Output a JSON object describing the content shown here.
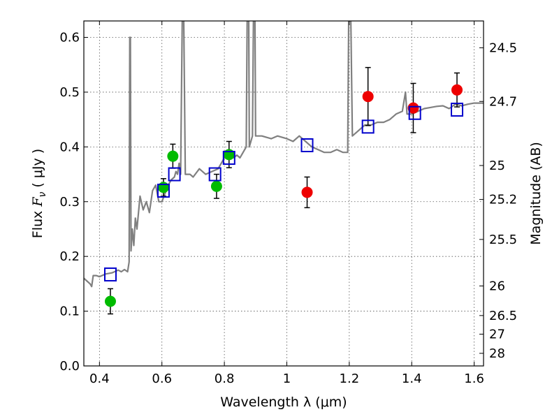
{
  "chart_data": {
    "type": "scatter",
    "title": "",
    "xlabel": "Wavelength  λ (μm)",
    "ylabel": "Flux  F_ν  ( μJy )",
    "ylabel_parts": {
      "prefix": "Flux  ",
      "symbol": "F",
      "subscript": "ν",
      "suffix": "  ( μJy )"
    },
    "y2label": "Magnitude (AB)",
    "xlim": [
      0.35,
      1.63
    ],
    "ylim": [
      0.0,
      0.63
    ],
    "grid": true,
    "x_ticks": [
      0.4,
      0.6,
      0.8,
      1.0,
      1.2,
      1.4,
      1.6
    ],
    "x_tick_labels": [
      "0.4",
      "0.6",
      "0.8",
      "1",
      "1.2",
      "1.4",
      "1.6"
    ],
    "y_ticks": [
      0.0,
      0.1,
      0.2,
      0.3,
      0.4,
      0.5,
      0.6
    ],
    "y_tick_labels": [
      "0.0",
      "0.1",
      "0.2",
      "0.3",
      "0.4",
      "0.5",
      "0.6"
    ],
    "mag_ticks": [
      {
        "label": "24.5",
        "flux": 0.581
      },
      {
        "label": "24.7",
        "flux": 0.483
      },
      {
        "label": "25",
        "flux": 0.366
      },
      {
        "label": "25.2",
        "flux": 0.304
      },
      {
        "label": "25.5",
        "flux": 0.231
      },
      {
        "label": "26",
        "flux": 0.146
      },
      {
        "label": "26.5",
        "flux": 0.092
      },
      {
        "label": "27",
        "flux": 0.058
      },
      {
        "label": "28",
        "flux": 0.023
      }
    ],
    "colors": {
      "model": "#808080",
      "green": "#00bb00",
      "red": "#ee0000",
      "box": "#0000cc",
      "errorbar": "#000000"
    },
    "model_sed": [
      [
        0.35,
        0.16
      ],
      [
        0.36,
        0.155
      ],
      [
        0.37,
        0.15
      ],
      [
        0.375,
        0.145
      ],
      [
        0.38,
        0.165
      ],
      [
        0.39,
        0.165
      ],
      [
        0.4,
        0.163
      ],
      [
        0.42,
        0.168
      ],
      [
        0.44,
        0.17
      ],
      [
        0.46,
        0.175
      ],
      [
        0.47,
        0.172
      ],
      [
        0.48,
        0.176
      ],
      [
        0.49,
        0.172
      ],
      [
        0.495,
        0.19
      ],
      [
        0.497,
        0.6
      ],
      [
        0.499,
        0.6
      ],
      [
        0.501,
        0.21
      ],
      [
        0.505,
        0.25
      ],
      [
        0.51,
        0.22
      ],
      [
        0.515,
        0.27
      ],
      [
        0.52,
        0.25
      ],
      [
        0.53,
        0.31
      ],
      [
        0.54,
        0.285
      ],
      [
        0.55,
        0.3
      ],
      [
        0.56,
        0.28
      ],
      [
        0.57,
        0.32
      ],
      [
        0.58,
        0.33
      ],
      [
        0.59,
        0.3
      ],
      [
        0.6,
        0.3
      ],
      [
        0.62,
        0.33
      ],
      [
        0.63,
        0.34
      ],
      [
        0.64,
        0.345
      ],
      [
        0.645,
        0.355
      ],
      [
        0.65,
        0.35
      ],
      [
        0.655,
        0.37
      ],
      [
        0.66,
        0.35
      ],
      [
        0.665,
        0.63
      ],
      [
        0.67,
        0.63
      ],
      [
        0.675,
        0.35
      ],
      [
        0.69,
        0.35
      ],
      [
        0.7,
        0.345
      ],
      [
        0.72,
        0.36
      ],
      [
        0.74,
        0.35
      ],
      [
        0.76,
        0.355
      ],
      [
        0.78,
        0.36
      ],
      [
        0.8,
        0.38
      ],
      [
        0.82,
        0.39
      ],
      [
        0.83,
        0.38
      ],
      [
        0.84,
        0.385
      ],
      [
        0.85,
        0.38
      ],
      [
        0.86,
        0.39
      ],
      [
        0.87,
        0.4
      ],
      [
        0.873,
        0.63
      ],
      [
        0.878,
        0.63
      ],
      [
        0.88,
        0.4
      ],
      [
        0.89,
        0.42
      ],
      [
        0.893,
        0.63
      ],
      [
        0.898,
        0.63
      ],
      [
        0.9,
        0.42
      ],
      [
        0.92,
        0.42
      ],
      [
        0.95,
        0.415
      ],
      [
        0.97,
        0.42
      ],
      [
        1.0,
        0.415
      ],
      [
        1.02,
        0.41
      ],
      [
        1.04,
        0.42
      ],
      [
        1.06,
        0.41
      ],
      [
        1.08,
        0.4
      ],
      [
        1.1,
        0.395
      ],
      [
        1.12,
        0.39
      ],
      [
        1.14,
        0.39
      ],
      [
        1.16,
        0.395
      ],
      [
        1.18,
        0.39
      ],
      [
        1.195,
        0.39
      ],
      [
        1.198,
        0.63
      ],
      [
        1.205,
        0.63
      ],
      [
        1.21,
        0.42
      ],
      [
        1.23,
        0.43
      ],
      [
        1.25,
        0.44
      ],
      [
        1.27,
        0.44
      ],
      [
        1.29,
        0.445
      ],
      [
        1.31,
        0.445
      ],
      [
        1.33,
        0.45
      ],
      [
        1.35,
        0.46
      ],
      [
        1.37,
        0.465
      ],
      [
        1.38,
        0.5
      ],
      [
        1.385,
        0.46
      ],
      [
        1.4,
        0.46
      ],
      [
        1.42,
        0.465
      ],
      [
        1.44,
        0.47
      ],
      [
        1.46,
        0.472
      ],
      [
        1.48,
        0.474
      ],
      [
        1.5,
        0.475
      ],
      [
        1.52,
        0.47
      ],
      [
        1.54,
        0.478
      ],
      [
        1.56,
        0.475
      ],
      [
        1.58,
        0.478
      ],
      [
        1.6,
        0.48
      ],
      [
        1.63,
        0.48
      ]
    ],
    "series": [
      {
        "name": "photometry (green)",
        "marker": "circle",
        "color": "#00bb00",
        "points": [
          {
            "x": 0.435,
            "y": 0.118,
            "yerr": 0.023
          },
          {
            "x": 0.605,
            "y": 0.326,
            "yerr": 0.016
          },
          {
            "x": 0.635,
            "y": 0.383,
            "yerr": 0.022
          },
          {
            "x": 0.775,
            "y": 0.328,
            "yerr": 0.022
          },
          {
            "x": 0.815,
            "y": 0.386,
            "yerr": 0.024
          }
        ]
      },
      {
        "name": "photometry (red)",
        "marker": "circle",
        "color": "#ee0000",
        "points": [
          {
            "x": 1.065,
            "y": 0.317,
            "yerr": 0.028
          },
          {
            "x": 1.26,
            "y": 0.492,
            "yerr": 0.053
          },
          {
            "x": 1.405,
            "y": 0.471,
            "yerr": 0.045
          },
          {
            "x": 1.545,
            "y": 0.504,
            "yerr": 0.031
          }
        ]
      },
      {
        "name": "model photometry",
        "marker": "square",
        "color": "#0000cc",
        "points": [
          {
            "x": 0.435,
            "y": 0.167
          },
          {
            "x": 0.605,
            "y": 0.32
          },
          {
            "x": 0.64,
            "y": 0.35
          },
          {
            "x": 0.77,
            "y": 0.35
          },
          {
            "x": 0.815,
            "y": 0.38
          },
          {
            "x": 1.065,
            "y": 0.403
          },
          {
            "x": 1.26,
            "y": 0.437
          },
          {
            "x": 1.41,
            "y": 0.462
          },
          {
            "x": 1.545,
            "y": 0.468
          }
        ]
      }
    ]
  }
}
